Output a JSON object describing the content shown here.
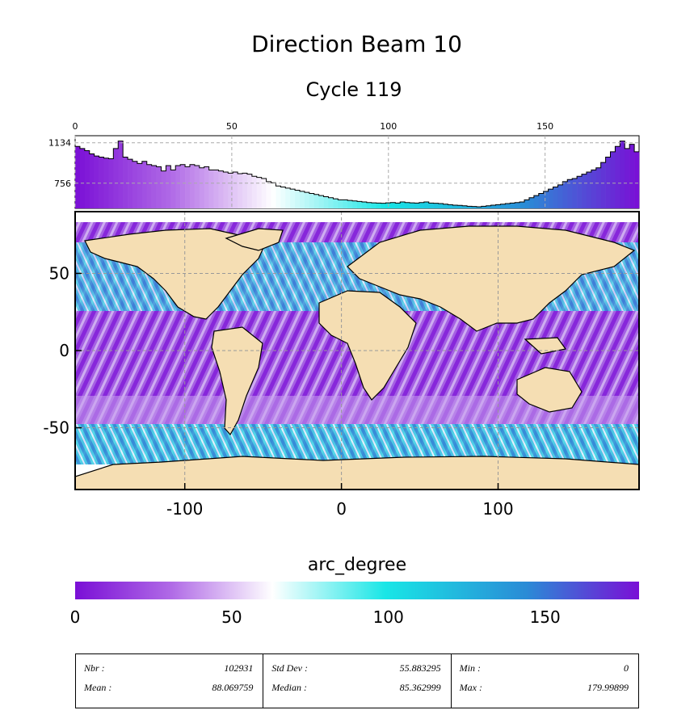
{
  "title": "Direction Beam 10",
  "subtitle": "Cycle 119",
  "colorbar_label": "arc_degree",
  "colors": {
    "purple": "#7a0fd6",
    "light": "#ffffff",
    "cyan": "#19e6e6",
    "blue": "#2a8bd6",
    "land": "#f5deb3",
    "white_ice": "#ffffff"
  },
  "chart_data": [
    {
      "type": "histogram",
      "x_ticks": [
        "0",
        "50",
        "100",
        "150"
      ],
      "x_tick_values": [
        0,
        50,
        100,
        150
      ],
      "xlim": [
        0,
        180
      ],
      "y_ticks": [
        "1134",
        "756"
      ],
      "y_tick_values": [
        1134,
        756
      ],
      "bin_width": 2,
      "values": [
        1100,
        1080,
        1060,
        1030,
        1010,
        1000,
        990,
        985,
        1080,
        1150,
        1000,
        980,
        960,
        940,
        960,
        930,
        920,
        910,
        870,
        920,
        880,
        920,
        930,
        910,
        930,
        920,
        900,
        910,
        880,
        880,
        870,
        860,
        850,
        860,
        845,
        850,
        840,
        820,
        810,
        800,
        770,
        760,
        730,
        720,
        710,
        700,
        690,
        680,
        670,
        660,
        650,
        640,
        630,
        620,
        610,
        600,
        600,
        595,
        590,
        585,
        580,
        575,
        572,
        570,
        568,
        572,
        575,
        570,
        580,
        575,
        572,
        570,
        575,
        580,
        570,
        568,
        565,
        560,
        555,
        550,
        548,
        545,
        540,
        538,
        535,
        540,
        545,
        550,
        555,
        560,
        565,
        570,
        575,
        580,
        600,
        620,
        640,
        660,
        680,
        700,
        720,
        740,
        770,
        790,
        800,
        820,
        840,
        860,
        880,
        900,
        950,
        1000,
        1050,
        1100,
        1150,
        1080,
        1120,
        1050
      ],
      "ylim": [
        520,
        1200
      ]
    },
    {
      "type": "map",
      "x_ticks": [
        "-100",
        "0",
        "100"
      ],
      "x_tick_values": [
        -100,
        0,
        100
      ],
      "y_ticks": [
        "50",
        "0",
        "-50"
      ],
      "y_tick_values": [
        50,
        0,
        -50
      ],
      "xlim": [
        -170,
        190
      ],
      "ylim": [
        -90,
        90
      ],
      "grid": true
    },
    {
      "type": "colorbar",
      "ticks": [
        "0",
        "50",
        "100",
        "150"
      ],
      "tick_values": [
        0,
        50,
        100,
        150
      ],
      "range": [
        0,
        180
      ]
    }
  ],
  "stats": {
    "nbr_label": "Nbr :",
    "nbr_value": "102931",
    "mean_label": "Mean :",
    "mean_value": "88.069759",
    "stddev_label": "Std Dev :",
    "stddev_value": "55.883295",
    "median_label": "Median :",
    "median_value": "85.362999",
    "min_label": "Min :",
    "min_value": "0",
    "max_label": "Max :",
    "max_value": "179.99899"
  }
}
